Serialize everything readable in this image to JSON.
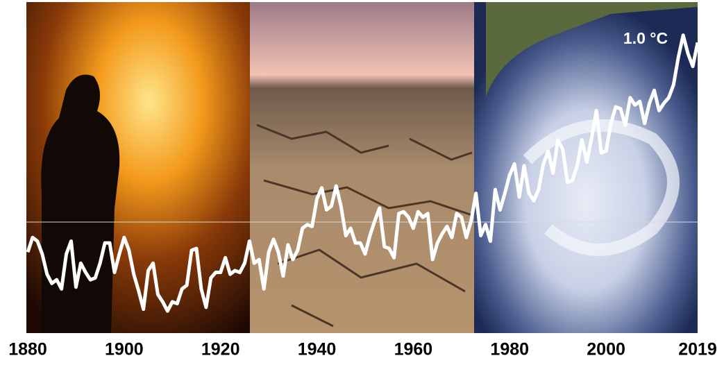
{
  "chart_data": {
    "type": "line",
    "annotation": "1.0 °C",
    "x": [
      1880,
      1881,
      1882,
      1883,
      1884,
      1885,
      1886,
      1887,
      1888,
      1889,
      1890,
      1891,
      1892,
      1893,
      1894,
      1895,
      1896,
      1897,
      1898,
      1899,
      1900,
      1901,
      1902,
      1903,
      1904,
      1905,
      1906,
      1907,
      1908,
      1909,
      1910,
      1911,
      1912,
      1913,
      1914,
      1915,
      1916,
      1917,
      1918,
      1919,
      1920,
      1921,
      1922,
      1923,
      1924,
      1925,
      1926,
      1927,
      1928,
      1929,
      1930,
      1931,
      1932,
      1933,
      1934,
      1935,
      1936,
      1937,
      1938,
      1939,
      1940,
      1941,
      1942,
      1943,
      1944,
      1945,
      1946,
      1947,
      1948,
      1949,
      1950,
      1951,
      1952,
      1953,
      1954,
      1955,
      1956,
      1957,
      1958,
      1959,
      1960,
      1961,
      1962,
      1963,
      1964,
      1965,
      1966,
      1967,
      1968,
      1969,
      1970,
      1971,
      1972,
      1973,
      1974,
      1975,
      1976,
      1977,
      1978,
      1979,
      1980,
      1981,
      1982,
      1983,
      1984,
      1985,
      1986,
      1987,
      1988,
      1989,
      1990,
      1991,
      1992,
      1993,
      1994,
      1995,
      1996,
      1997,
      1998,
      1999,
      2000,
      2001,
      2002,
      2003,
      2004,
      2005,
      2006,
      2007,
      2008,
      2009,
      2010,
      2011,
      2012,
      2013,
      2014,
      2015,
      2016,
      2017,
      2018,
      2019
    ],
    "series": [
      {
        "color": "#ffffff",
        "values": [
          -0.16,
          -0.08,
          -0.1,
          -0.17,
          -0.28,
          -0.33,
          -0.31,
          -0.36,
          -0.17,
          -0.1,
          -0.35,
          -0.22,
          -0.27,
          -0.31,
          -0.3,
          -0.22,
          -0.11,
          -0.11,
          -0.27,
          -0.17,
          -0.08,
          -0.15,
          -0.28,
          -0.37,
          -0.47,
          -0.26,
          -0.22,
          -0.39,
          -0.43,
          -0.48,
          -0.43,
          -0.44,
          -0.36,
          -0.34,
          -0.15,
          -0.14,
          -0.36,
          -0.46,
          -0.3,
          -0.27,
          -0.27,
          -0.19,
          -0.28,
          -0.26,
          -0.27,
          -0.22,
          -0.1,
          -0.22,
          -0.2,
          -0.36,
          -0.16,
          -0.09,
          -0.16,
          -0.29,
          -0.12,
          -0.2,
          -0.15,
          -0.03,
          -0.01,
          -0.02,
          0.13,
          0.19,
          0.07,
          0.09,
          0.2,
          0.09,
          -0.07,
          -0.03,
          -0.11,
          -0.11,
          -0.17,
          -0.07,
          0.01,
          0.08,
          -0.13,
          -0.14,
          -0.19,
          0.05,
          0.06,
          0.03,
          -0.03,
          0.06,
          0.03,
          0.05,
          -0.2,
          -0.11,
          -0.06,
          -0.02,
          -0.08,
          0.05,
          0.03,
          -0.08,
          0.01,
          0.16,
          -0.07,
          -0.01,
          -0.1,
          0.18,
          0.07,
          0.16,
          0.26,
          0.32,
          0.14,
          0.31,
          0.16,
          0.12,
          0.18,
          0.32,
          0.39,
          0.27,
          0.45,
          0.4,
          0.22,
          0.23,
          0.31,
          0.45,
          0.33,
          0.46,
          0.61,
          0.38,
          0.39,
          0.54,
          0.63,
          0.62,
          0.53,
          0.68,
          0.64,
          0.66,
          0.54,
          0.65,
          0.72,
          0.61,
          0.65,
          0.68,
          0.75,
          0.9,
          1.02,
          0.92,
          0.85,
          0.98
        ]
      }
    ],
    "xlim": [
      1880,
      2019
    ],
    "xticks": [
      1880,
      1900,
      1920,
      1940,
      1960,
      1980,
      2000,
      2019
    ],
    "ylim": [
      -0.6,
      1.2
    ]
  }
}
